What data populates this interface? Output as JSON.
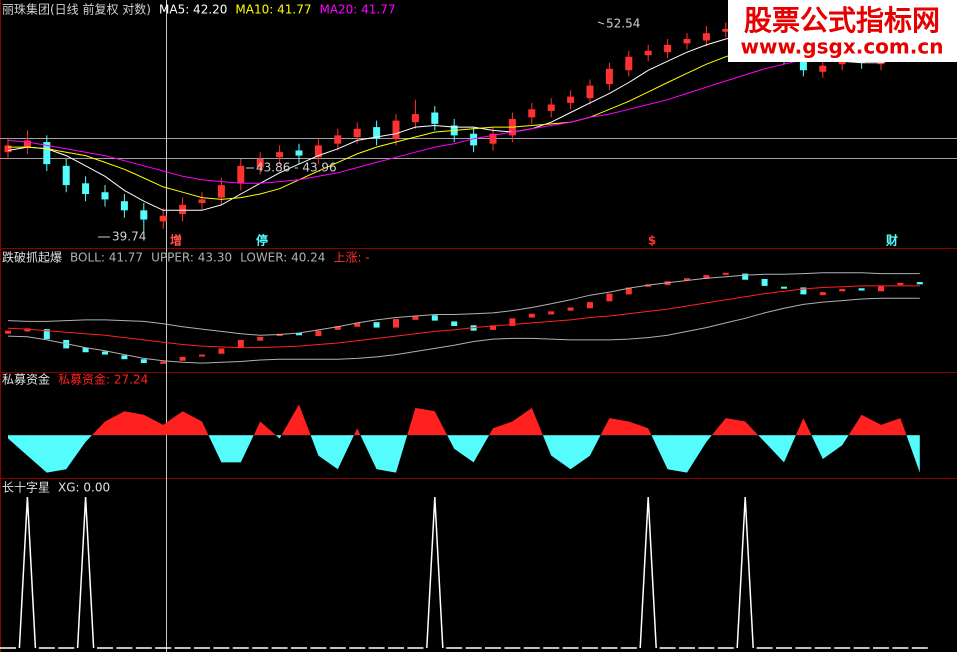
{
  "chart_data": [
    {
      "type": "candlestick",
      "title": "丽珠集团(日线 前复权 对数)",
      "log_scale": true,
      "ylim": [
        39,
        54
      ],
      "up_color": "#ff3232",
      "down_color": "#54fcfc",
      "open": [
        44.2,
        44.5,
        44.8,
        43.4,
        42.4,
        41.9,
        41.4,
        40.9,
        40.3,
        40.7,
        41.3,
        41.6,
        42.4,
        43.3,
        43.9,
        44.3,
        43.9,
        44.7,
        45.1,
        45.7,
        45.0,
        46.0,
        46.6,
        45.8,
        45.3,
        44.7,
        45.2,
        46.3,
        46.7,
        47.2,
        47.5,
        48.4,
        49.3,
        50.3,
        50.5,
        51.1,
        51.3,
        51.9,
        52.0,
        51.3,
        50.3,
        50.2,
        49.2,
        49.7,
        50.1,
        49.7,
        50.5,
        50.9
      ],
      "high": [
        45.0,
        45.5,
        45.2,
        43.8,
        42.8,
        42.3,
        41.8,
        41.3,
        41.0,
        41.6,
        41.9,
        42.7,
        43.8,
        44.2,
        44.6,
        44.7,
        45.0,
        45.6,
        46.0,
        46.1,
        46.5,
        47.4,
        47.0,
        46.2,
        45.7,
        45.7,
        46.6,
        47.2,
        47.5,
        48.0,
        48.7,
        49.8,
        50.6,
        51.0,
        51.4,
        51.8,
        52.3,
        52.54,
        52.4,
        51.7,
        50.8,
        50.6,
        50.0,
        50.4,
        50.5,
        50.8,
        51.2,
        51.3
      ],
      "low": [
        43.8,
        44.1,
        43.1,
        41.9,
        41.4,
        41.1,
        40.5,
        39.74,
        39.9,
        40.3,
        40.9,
        41.2,
        42.0,
        42.9,
        43.5,
        43.5,
        43.5,
        44.3,
        44.7,
        44.6,
        44.6,
        45.6,
        45.5,
        44.8,
        44.2,
        44.3,
        44.8,
        45.9,
        46.3,
        46.8,
        47.1,
        48.0,
        48.9,
        49.9,
        50.1,
        50.7,
        50.9,
        51.5,
        50.8,
        50.0,
        49.7,
        48.9,
        48.8,
        49.3,
        49.4,
        49.3,
        50.1,
        50.2
      ],
      "close": [
        44.6,
        44.9,
        43.5,
        42.3,
        41.8,
        41.5,
        40.9,
        40.4,
        40.6,
        41.2,
        41.5,
        42.3,
        43.4,
        43.8,
        44.2,
        44.0,
        44.6,
        45.2,
        45.6,
        45.0,
        46.1,
        46.5,
        45.9,
        45.2,
        44.6,
        45.3,
        46.2,
        46.8,
        47.1,
        47.6,
        48.3,
        49.4,
        50.2,
        50.6,
        51.0,
        51.4,
        51.8,
        52.1,
        51.2,
        50.4,
        50.1,
        49.3,
        49.6,
        50.0,
        49.8,
        50.4,
        50.8,
        50.6
      ],
      "series": [
        {
          "name": "MA5: 42.20",
          "color": "#ffffff",
          "values": [
            44.3,
            44.5,
            44.4,
            44.0,
            43.4,
            42.8,
            42.0,
            41.4,
            40.9,
            40.9,
            40.9,
            41.2,
            41.8,
            42.4,
            43.0,
            43.5,
            44.0,
            44.4,
            44.9,
            45.1,
            45.3,
            45.7,
            45.8,
            45.7,
            45.7,
            45.5,
            45.4,
            45.6,
            46.0,
            46.6,
            47.2,
            47.8,
            48.5,
            49.3,
            49.9,
            50.5,
            51.0,
            51.4,
            51.7,
            51.5,
            51.2,
            50.7,
            50.2,
            49.9,
            49.8,
            49.8,
            50.1,
            50.3
          ]
        },
        {
          "name": "MA10: 41.77",
          "color": "#ffff00",
          "values": [
            44.5,
            44.5,
            44.4,
            44.2,
            44.0,
            43.6,
            43.2,
            42.7,
            42.2,
            41.9,
            41.6,
            41.5,
            41.6,
            41.8,
            42.1,
            42.6,
            43.1,
            43.6,
            44.1,
            44.5,
            44.8,
            45.1,
            45.4,
            45.5,
            45.6,
            45.7,
            45.7,
            45.8,
            45.9,
            46.0,
            46.3,
            46.8,
            47.3,
            47.9,
            48.5,
            49.1,
            49.7,
            50.2,
            50.6,
            50.8,
            50.9,
            50.8,
            50.6,
            50.4,
            50.2,
            50.0,
            50.1,
            50.0
          ]
        },
        {
          "name": "MA20: 41.77",
          "color": "#ff00ff",
          "values": [
            44.9,
            44.8,
            44.6,
            44.4,
            44.2,
            44.0,
            43.7,
            43.4,
            43.1,
            42.8,
            42.6,
            42.5,
            42.4,
            42.4,
            42.5,
            42.6,
            42.8,
            43.0,
            43.3,
            43.6,
            43.9,
            44.2,
            44.5,
            44.7,
            45.0,
            45.2,
            45.4,
            45.6,
            45.8,
            46.0,
            46.3,
            46.5,
            46.8,
            47.1,
            47.4,
            47.8,
            48.2,
            48.6,
            49.0,
            49.4,
            49.7,
            50.0,
            50.2,
            50.3,
            50.4,
            50.4,
            50.4,
            50.4
          ]
        }
      ],
      "annotations": [
        "52.54",
        "39.74",
        "43.86 - 43.96"
      ],
      "markers": [
        "增",
        "停",
        "$",
        "财"
      ]
    },
    {
      "type": "bollinger",
      "title": "跌破抓起爆",
      "ylim": [
        39.5,
        53.5
      ],
      "signal_label": "上涨: -",
      "series": [
        {
          "name": "BOLL: 41.77",
          "color": "#ff2020",
          "values": [
            44.9,
            44.8,
            44.6,
            44.4,
            44.2,
            44.0,
            43.7,
            43.4,
            43.1,
            42.8,
            42.6,
            42.5,
            42.4,
            42.4,
            42.5,
            42.6,
            42.8,
            43.0,
            43.3,
            43.6,
            43.9,
            44.2,
            44.5,
            44.7,
            45.0,
            45.2,
            45.4,
            45.6,
            45.8,
            46.0,
            46.3,
            46.5,
            46.8,
            47.1,
            47.4,
            47.8,
            48.2,
            48.6,
            49.0,
            49.4,
            49.7,
            50.0,
            50.2,
            50.3,
            50.4,
            50.4,
            50.4,
            50.4
          ]
        },
        {
          "name": "UPPER: 43.30",
          "color": "#b0b0b0",
          "values": [
            45.9,
            45.8,
            45.8,
            45.9,
            46.0,
            46.0,
            45.9,
            45.8,
            45.5,
            45.1,
            44.8,
            44.5,
            44.2,
            44.0,
            44.1,
            44.3,
            44.7,
            45.1,
            45.6,
            46.0,
            46.3,
            46.5,
            46.7,
            46.7,
            46.8,
            46.9,
            47.2,
            47.6,
            48.1,
            48.6,
            49.2,
            49.6,
            50.1,
            50.5,
            50.8,
            51.1,
            51.4,
            51.6,
            51.8,
            51.9,
            51.9,
            52.0,
            52.1,
            52.1,
            52.1,
            52.0,
            52.0,
            52.0
          ]
        },
        {
          "name": "LOWER: 40.24",
          "color": "#b0b0b0",
          "values": [
            43.9,
            43.8,
            43.4,
            42.9,
            42.4,
            42.0,
            41.5,
            41.0,
            40.7,
            40.5,
            40.4,
            40.5,
            40.6,
            40.8,
            40.9,
            40.9,
            40.9,
            40.9,
            41.0,
            41.2,
            41.5,
            41.9,
            42.3,
            42.7,
            43.2,
            43.5,
            43.6,
            43.6,
            43.5,
            43.4,
            43.4,
            43.4,
            43.5,
            43.7,
            44.0,
            44.5,
            45.0,
            45.6,
            46.2,
            46.9,
            47.5,
            48.0,
            48.3,
            48.5,
            48.7,
            48.8,
            48.8,
            48.8
          ]
        }
      ]
    },
    {
      "type": "area",
      "title": "私募资金",
      "ylim": [
        -60,
        75
      ],
      "positive_color": "#ff2020",
      "negative_color": "#54fcfc",
      "series": [
        {
          "name": "私募资金: 27.24",
          "color": "#ff2020",
          "values": [
            -5,
            -30,
            -55,
            -50,
            -10,
            20,
            35,
            30,
            15,
            35,
            20,
            -40,
            -40,
            20,
            -5,
            45,
            -30,
            -50,
            10,
            -50,
            -55,
            40,
            35,
            -20,
            -40,
            10,
            20,
            40,
            -30,
            -50,
            -30,
            25,
            20,
            10,
            -50,
            -55,
            -10,
            25,
            20,
            -10,
            -40,
            25,
            -35,
            -15,
            30,
            15,
            25,
            -55
          ]
        }
      ]
    },
    {
      "type": "spike",
      "title": "长十字星",
      "ylim": [
        0,
        1
      ],
      "series": [
        {
          "name": "XG: 0.00",
          "color": "#ffffff",
          "values": [
            0,
            1,
            0,
            0,
            1,
            0,
            0,
            0,
            0,
            0,
            0,
            0,
            0,
            0,
            0,
            0,
            0,
            0,
            0,
            0,
            0,
            0,
            1,
            0,
            0,
            0,
            0,
            0,
            0,
            0,
            0,
            0,
            0,
            1,
            0,
            0,
            0,
            0,
            1,
            0,
            0,
            0,
            0,
            0,
            0,
            0,
            0,
            0
          ]
        }
      ]
    }
  ],
  "watermark": {
    "title": "股票公式指标网",
    "url": "www.gsgx.com.cn"
  }
}
